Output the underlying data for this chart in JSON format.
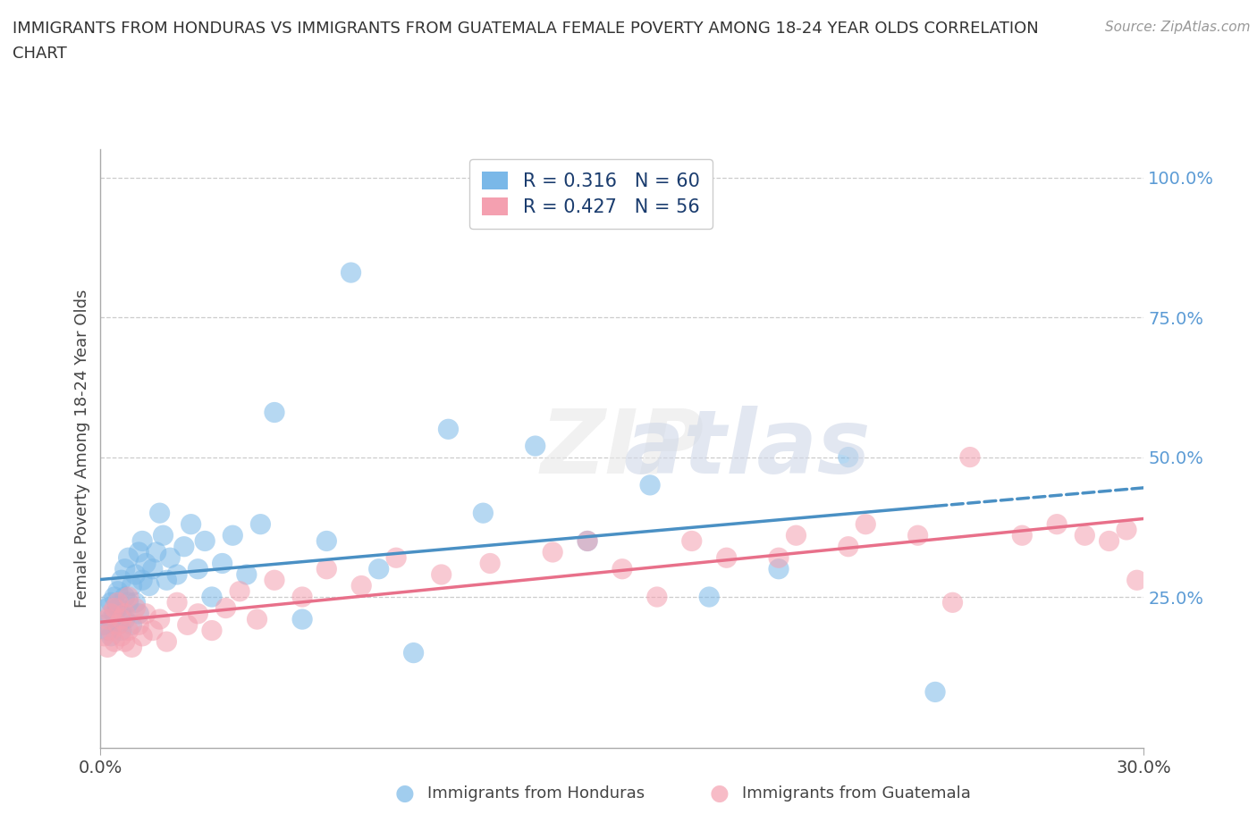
{
  "title_line1": "IMMIGRANTS FROM HONDURAS VS IMMIGRANTS FROM GUATEMALA FEMALE POVERTY AMONG 18-24 YEAR OLDS CORRELATION",
  "title_line2": "CHART",
  "source": "Source: ZipAtlas.com",
  "ylabel": "Female Poverty Among 18-24 Year Olds",
  "xlabel_honduras": "Immigrants from Honduras",
  "xlabel_guatemala": "Immigrants from Guatemala",
  "xlim": [
    0.0,
    0.3
  ],
  "ylim": [
    -0.02,
    1.05
  ],
  "ytick_vals": [
    0.25,
    0.5,
    0.75,
    1.0
  ],
  "ytick_labels": [
    "25.0%",
    "50.0%",
    "75.0%",
    "100.0%"
  ],
  "xtick_vals": [
    0.0,
    0.3
  ],
  "xtick_labels": [
    "0.0%",
    "30.0%"
  ],
  "honduras_R": 0.316,
  "honduras_N": 60,
  "guatemala_R": 0.427,
  "guatemala_N": 56,
  "honduras_color": "#7ab8e8",
  "guatemala_color": "#f4a0b0",
  "trend_honduras_color": "#4a90c4",
  "trend_guatemala_color": "#e8708a",
  "background_color": "#ffffff",
  "grid_color": "#cccccc",
  "legend_color": "#1a3c6e",
  "ytick_color": "#5b9bd5",
  "watermark": "ZIPatlas",
  "honduras_x": [
    0.001,
    0.002,
    0.002,
    0.003,
    0.003,
    0.003,
    0.004,
    0.004,
    0.005,
    0.005,
    0.005,
    0.006,
    0.006,
    0.006,
    0.007,
    0.007,
    0.007,
    0.008,
    0.008,
    0.009,
    0.009,
    0.01,
    0.01,
    0.011,
    0.011,
    0.012,
    0.012,
    0.013,
    0.014,
    0.015,
    0.016,
    0.017,
    0.018,
    0.019,
    0.02,
    0.022,
    0.024,
    0.026,
    0.028,
    0.03,
    0.032,
    0.035,
    0.038,
    0.042,
    0.046,
    0.05,
    0.058,
    0.065,
    0.072,
    0.08,
    0.09,
    0.1,
    0.11,
    0.125,
    0.14,
    0.158,
    0.175,
    0.195,
    0.215,
    0.24
  ],
  "honduras_y": [
    0.2,
    0.19,
    0.23,
    0.21,
    0.18,
    0.24,
    0.22,
    0.25,
    0.2,
    0.23,
    0.26,
    0.19,
    0.22,
    0.28,
    0.21,
    0.25,
    0.3,
    0.24,
    0.32,
    0.2,
    0.27,
    0.24,
    0.29,
    0.33,
    0.22,
    0.28,
    0.35,
    0.31,
    0.27,
    0.3,
    0.33,
    0.4,
    0.36,
    0.28,
    0.32,
    0.29,
    0.34,
    0.38,
    0.3,
    0.35,
    0.25,
    0.31,
    0.36,
    0.29,
    0.38,
    0.58,
    0.21,
    0.35,
    0.83,
    0.3,
    0.15,
    0.55,
    0.4,
    0.52,
    0.35,
    0.45,
    0.25,
    0.3,
    0.5,
    0.08
  ],
  "guatemala_x": [
    0.001,
    0.002,
    0.002,
    0.003,
    0.003,
    0.004,
    0.004,
    0.005,
    0.005,
    0.006,
    0.006,
    0.007,
    0.007,
    0.008,
    0.008,
    0.009,
    0.01,
    0.011,
    0.012,
    0.013,
    0.015,
    0.017,
    0.019,
    0.022,
    0.025,
    0.028,
    0.032,
    0.036,
    0.04,
    0.045,
    0.05,
    0.058,
    0.065,
    0.075,
    0.085,
    0.098,
    0.112,
    0.13,
    0.15,
    0.17,
    0.195,
    0.215,
    0.235,
    0.25,
    0.265,
    0.275,
    0.283,
    0.29,
    0.295,
    0.298,
    0.14,
    0.16,
    0.18,
    0.2,
    0.22,
    0.245
  ],
  "guatemala_y": [
    0.18,
    0.21,
    0.16,
    0.22,
    0.19,
    0.17,
    0.23,
    0.2,
    0.24,
    0.18,
    0.21,
    0.17,
    0.22,
    0.19,
    0.25,
    0.16,
    0.23,
    0.2,
    0.18,
    0.22,
    0.19,
    0.21,
    0.17,
    0.24,
    0.2,
    0.22,
    0.19,
    0.23,
    0.26,
    0.21,
    0.28,
    0.25,
    0.3,
    0.27,
    0.32,
    0.29,
    0.31,
    0.33,
    0.3,
    0.35,
    0.32,
    0.34,
    0.36,
    0.5,
    0.36,
    0.38,
    0.36,
    0.35,
    0.37,
    0.28,
    0.35,
    0.25,
    0.32,
    0.36,
    0.38,
    0.24
  ]
}
